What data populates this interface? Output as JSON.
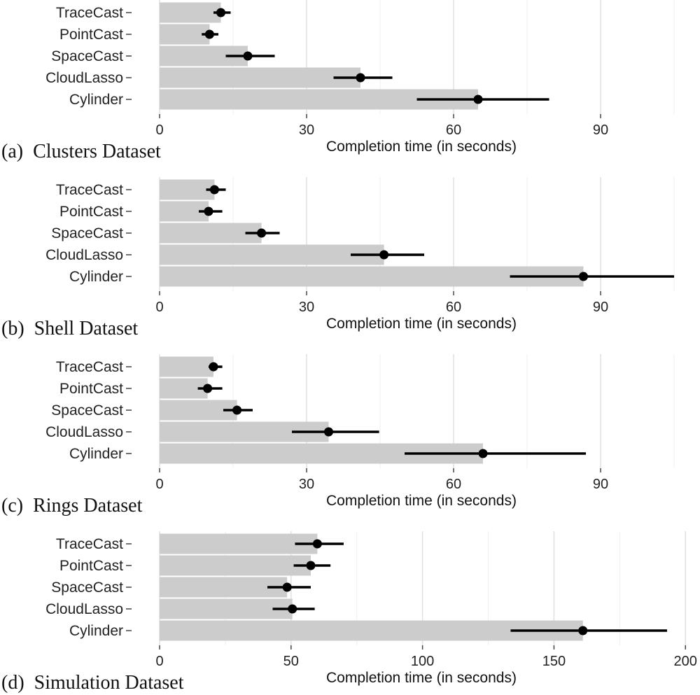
{
  "chart_data": [
    {
      "type": "bar",
      "caption": "(a)  Clusters Dataset",
      "xlabel": "Completion time (in seconds)",
      "categories": [
        "TraceCast",
        "PointCast",
        "SpaceCast",
        "CloudLasso",
        "Cylinder"
      ],
      "xlim": [
        0,
        110
      ],
      "xticks": [
        0,
        30,
        60,
        90
      ],
      "grid": true,
      "series": [
        {
          "values": [
            12.5,
            10.2,
            18.0,
            41.0,
            65.0
          ],
          "error_low": [
            11.0,
            8.6,
            13.5,
            35.5,
            52.5
          ],
          "error_high": [
            14.5,
            12.0,
            23.5,
            47.5,
            79.5
          ]
        }
      ]
    },
    {
      "type": "bar",
      "caption": "(b)  Shell Dataset",
      "xlabel": "Completion time (in seconds)",
      "categories": [
        "TraceCast",
        "PointCast",
        "SpaceCast",
        "CloudLasso",
        "Cylinder"
      ],
      "xlim": [
        0,
        110
      ],
      "xticks": [
        0,
        30,
        60,
        90
      ],
      "grid": true,
      "series": [
        {
          "values": [
            11.2,
            10.0,
            20.8,
            45.8,
            86.5
          ],
          "error_low": [
            9.5,
            8.0,
            17.5,
            39.0,
            71.5
          ],
          "error_high": [
            13.5,
            12.8,
            24.5,
            54.0,
            105.0
          ]
        }
      ]
    },
    {
      "type": "bar",
      "caption": "(c)  Rings Dataset",
      "xlabel": "Completion time (in seconds)",
      "categories": [
        "TraceCast",
        "PointCast",
        "SpaceCast",
        "CloudLasso",
        "Cylinder"
      ],
      "xlim": [
        0,
        110
      ],
      "xticks": [
        0,
        30,
        60,
        90
      ],
      "grid": true,
      "series": [
        {
          "values": [
            11.0,
            9.8,
            15.8,
            34.5,
            66.0
          ],
          "error_low": [
            10.0,
            7.8,
            13.0,
            27.0,
            50.0
          ],
          "error_high": [
            12.8,
            12.8,
            19.0,
            44.8,
            87.0
          ]
        }
      ]
    },
    {
      "type": "bar",
      "caption": "(d)  Simulation Dataset",
      "xlabel": "Completion time (in seconds)",
      "categories": [
        "TraceCast",
        "PointCast",
        "SpaceCast",
        "CloudLasso",
        "Cylinder"
      ],
      "xlim": [
        0,
        205
      ],
      "xticks": [
        0,
        50,
        100,
        150,
        200
      ],
      "grid": true,
      "series": [
        {
          "values": [
            60.0,
            57.5,
            48.5,
            50.5,
            161.0
          ],
          "error_low": [
            51.5,
            51.0,
            41.0,
            43.0,
            133.5
          ],
          "error_high": [
            70.0,
            65.0,
            57.5,
            59.0,
            193.0
          ]
        }
      ]
    }
  ]
}
